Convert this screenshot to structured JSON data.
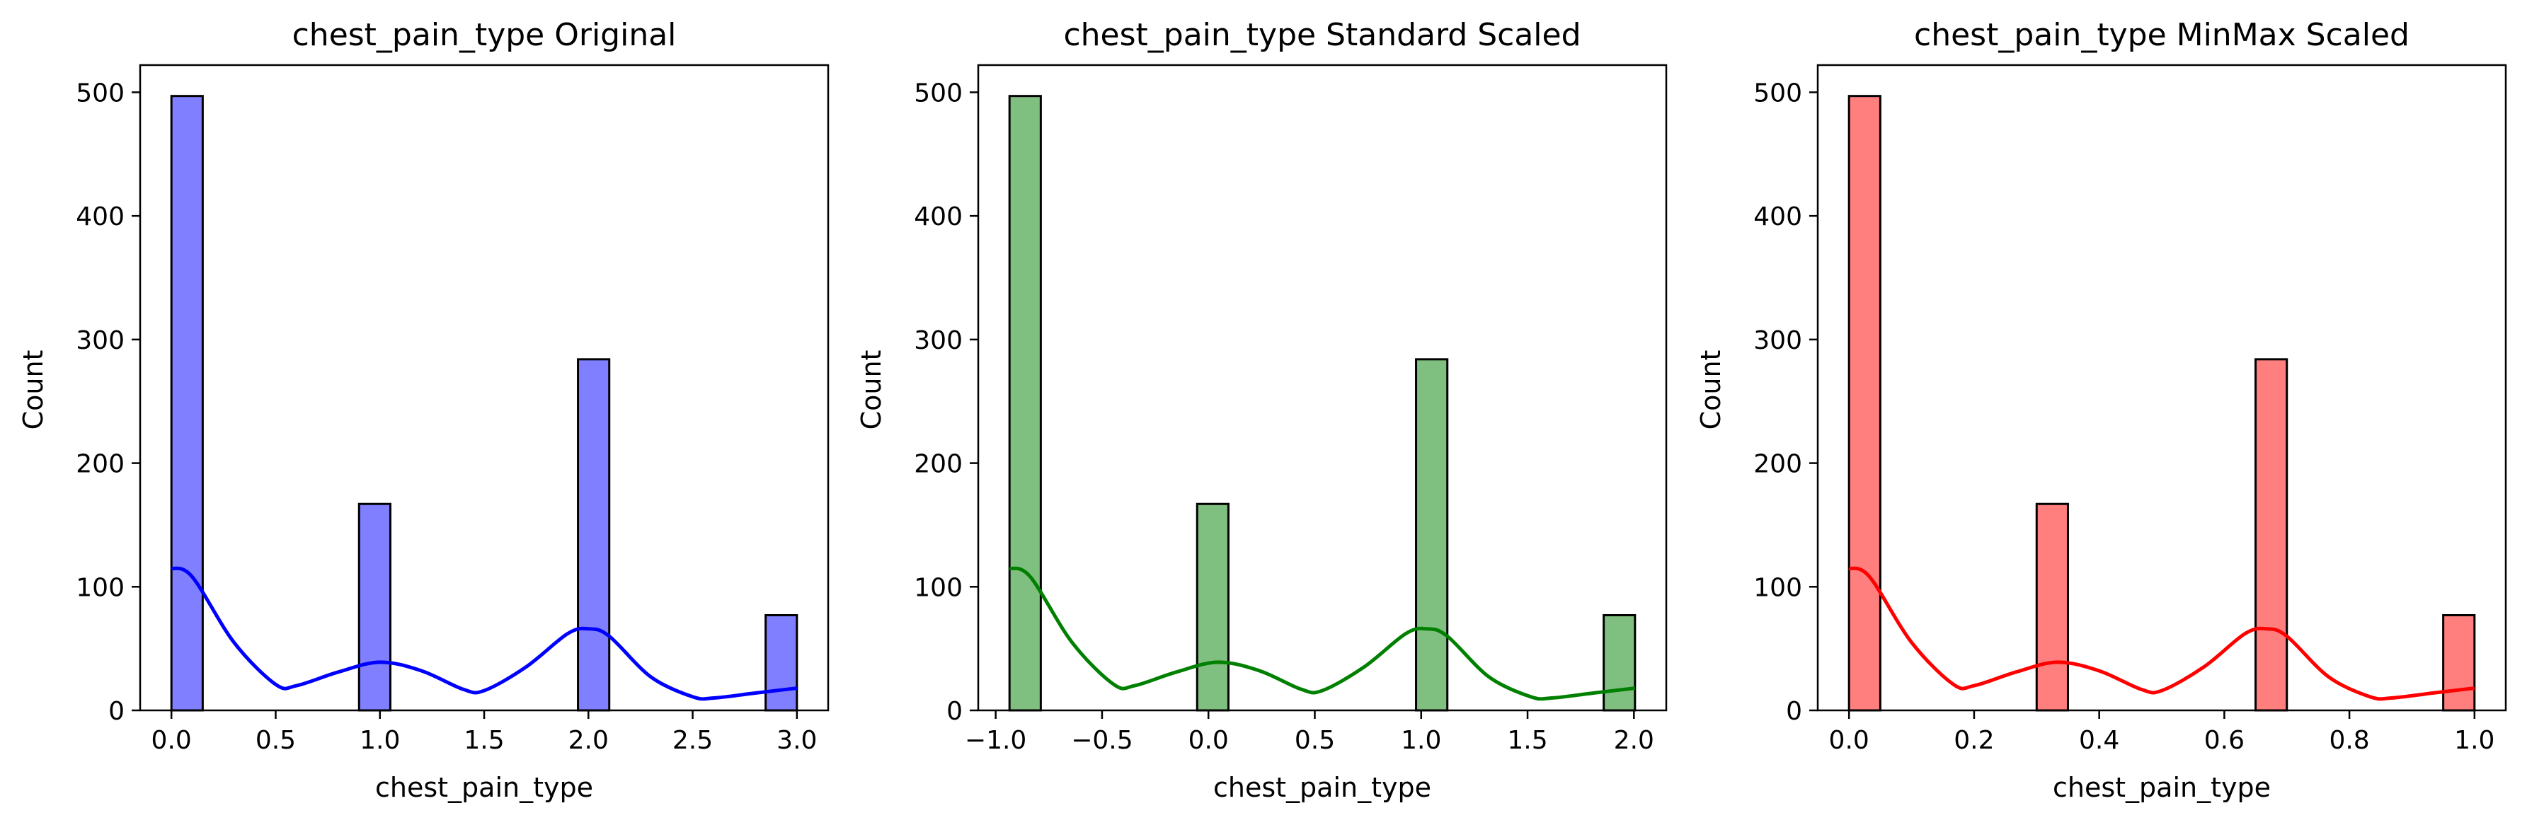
{
  "chart_data": [
    {
      "type": "bar",
      "title": "chest_pain_type Original",
      "xlabel": "chest_pain_type",
      "ylabel": "Count",
      "color": "#0000ff",
      "bin_edges": [
        0.0,
        0.15,
        0.3,
        0.45,
        0.6,
        0.75,
        0.9,
        1.05,
        1.2,
        1.35,
        1.5,
        1.65,
        1.8,
        1.95,
        2.1,
        2.25,
        2.4,
        2.55,
        2.7,
        2.85,
        3.0
      ],
      "counts": [
        497,
        0,
        0,
        0,
        0,
        0,
        167,
        0,
        0,
        0,
        0,
        0,
        0,
        284,
        0,
        0,
        0,
        0,
        0,
        77
      ],
      "kde": {
        "x": [
          0.0,
          0.1,
          0.3,
          0.5,
          0.6,
          0.8,
          1.0,
          1.2,
          1.4,
          1.5,
          1.7,
          1.9,
          2.0,
          2.1,
          2.3,
          2.5,
          2.6,
          2.8,
          3.0
        ],
        "y": [
          115,
          108,
          55,
          21,
          20,
          31,
          39,
          32,
          17,
          16,
          35,
          62,
          66,
          60,
          27,
          11,
          10,
          14,
          18
        ]
      },
      "xlim": [
        -0.15,
        3.15
      ],
      "ylim": [
        0,
        522
      ],
      "xticks": [
        0.0,
        0.5,
        1.0,
        1.5,
        2.0,
        2.5,
        3.0
      ],
      "xtick_labels": [
        "0.0",
        "0.5",
        "1.0",
        "1.5",
        "2.0",
        "2.5",
        "3.0"
      ],
      "yticks": [
        0,
        100,
        200,
        300,
        400,
        500
      ],
      "ytick_labels": [
        "0",
        "100",
        "200",
        "300",
        "400",
        "500"
      ]
    },
    {
      "type": "bar",
      "title": "chest_pain_type Standard Scaled",
      "xlabel": "chest_pain_type",
      "ylabel": "Count",
      "color": "#008000",
      "bin_edges": [
        -0.935,
        -0.788,
        -0.641,
        -0.494,
        -0.347,
        -0.2,
        -0.053,
        0.094,
        0.241,
        0.388,
        0.535,
        0.682,
        0.829,
        0.976,
        1.123,
        1.27,
        1.417,
        1.564,
        1.711,
        1.858,
        2.005
      ],
      "counts": [
        497,
        0,
        0,
        0,
        0,
        0,
        167,
        0,
        0,
        0,
        0,
        0,
        0,
        284,
        0,
        0,
        0,
        0,
        0,
        77
      ],
      "kde": {
        "x": [
          -0.935,
          -0.837,
          -0.641,
          -0.445,
          -0.347,
          -0.151,
          0.045,
          0.241,
          0.437,
          0.535,
          0.731,
          0.927,
          1.025,
          1.123,
          1.319,
          1.515,
          1.613,
          1.809,
          2.005
        ],
        "y": [
          115,
          108,
          55,
          21,
          20,
          31,
          39,
          32,
          17,
          16,
          35,
          62,
          66,
          60,
          27,
          11,
          10,
          14,
          18
        ]
      },
      "xlim": [
        -1.082,
        2.152
      ],
      "ylim": [
        0,
        522
      ],
      "xticks": [
        -1.0,
        -0.5,
        0.0,
        0.5,
        1.0,
        1.5,
        2.0
      ],
      "xtick_labels": [
        "−1.0",
        "−0.5",
        "0.0",
        "0.5",
        "1.0",
        "1.5",
        "2.0"
      ],
      "yticks": [
        0,
        100,
        200,
        300,
        400,
        500
      ],
      "ytick_labels": [
        "0",
        "100",
        "200",
        "300",
        "400",
        "500"
      ]
    },
    {
      "type": "bar",
      "title": "chest_pain_type MinMax Scaled",
      "xlabel": "chest_pain_type",
      "ylabel": "Count",
      "color": "#ff0000",
      "bin_edges": [
        0.0,
        0.05,
        0.1,
        0.15,
        0.2,
        0.25,
        0.3,
        0.35,
        0.4,
        0.45,
        0.5,
        0.55,
        0.6,
        0.65,
        0.7,
        0.75,
        0.8,
        0.85,
        0.9,
        0.95,
        1.0
      ],
      "counts": [
        497,
        0,
        0,
        0,
        0,
        0,
        167,
        0,
        0,
        0,
        0,
        0,
        0,
        284,
        0,
        0,
        0,
        0,
        0,
        77
      ],
      "kde": {
        "x": [
          0.0,
          0.033,
          0.1,
          0.167,
          0.2,
          0.267,
          0.333,
          0.4,
          0.467,
          0.5,
          0.567,
          0.633,
          0.667,
          0.7,
          0.767,
          0.833,
          0.867,
          0.933,
          1.0
        ],
        "y": [
          115,
          108,
          55,
          21,
          20,
          31,
          39,
          32,
          17,
          16,
          35,
          62,
          66,
          60,
          27,
          11,
          10,
          14,
          18
        ]
      },
      "xlim": [
        -0.05,
        1.05
      ],
      "ylim": [
        0,
        522
      ],
      "xticks": [
        0.0,
        0.2,
        0.4,
        0.6,
        0.8,
        1.0
      ],
      "xtick_labels": [
        "0.0",
        "0.2",
        "0.4",
        "0.6",
        "0.8",
        "1.0"
      ],
      "yticks": [
        0,
        100,
        200,
        300,
        400,
        500
      ],
      "ytick_labels": [
        "0",
        "100",
        "200",
        "300",
        "400",
        "500"
      ]
    }
  ]
}
